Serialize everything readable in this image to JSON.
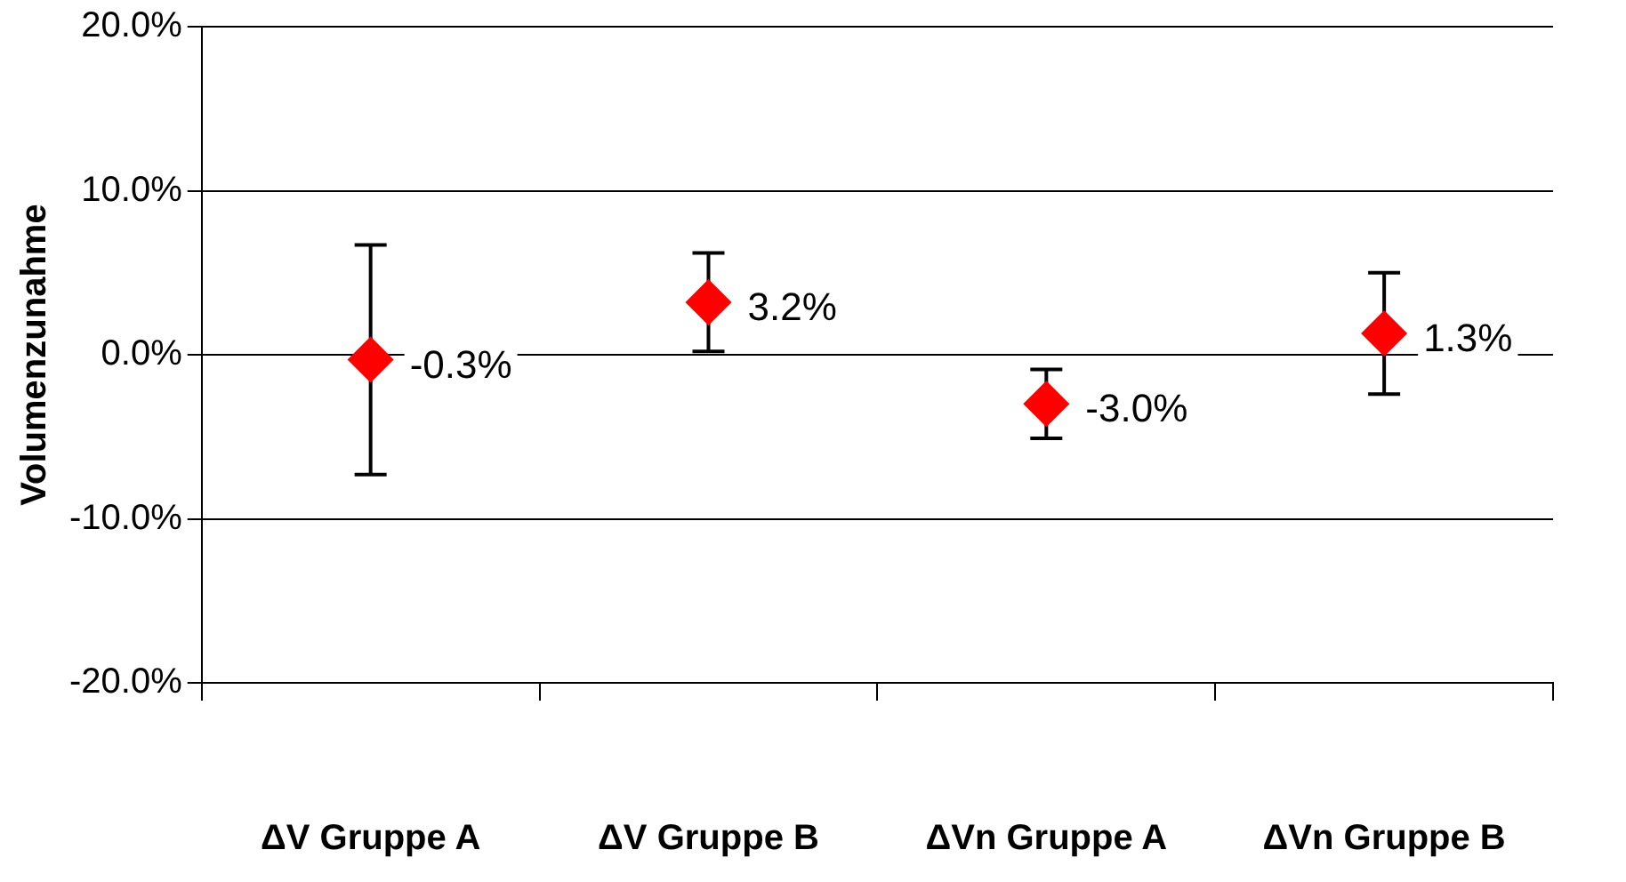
{
  "chart_data": {
    "type": "scatter",
    "ylabel": "Volumenzunahme",
    "categories": [
      "ΔV Gruppe A",
      "ΔV Gruppe B",
      "ΔVn Gruppe A",
      "ΔVn Gruppe B"
    ],
    "values": [
      -0.3,
      3.2,
      -3.0,
      1.3
    ],
    "value_labels": [
      "-0.3%",
      "3.2%",
      "-3.0%",
      "1.3%"
    ],
    "errors": [
      7.0,
      3.0,
      2.1,
      3.7
    ],
    "color": "#ff0000",
    "marker": "diamond",
    "ylim": [
      -20,
      20
    ],
    "yticks": [
      {
        "value": -20,
        "label": "-20.0%"
      },
      {
        "value": -10,
        "label": "-10.0%"
      },
      {
        "value": 0,
        "label": "0.0%"
      },
      {
        "value": 10,
        "label": "10.0%"
      },
      {
        "value": 20,
        "label": "20.0%"
      }
    ],
    "grid": "y",
    "legend": false
  }
}
